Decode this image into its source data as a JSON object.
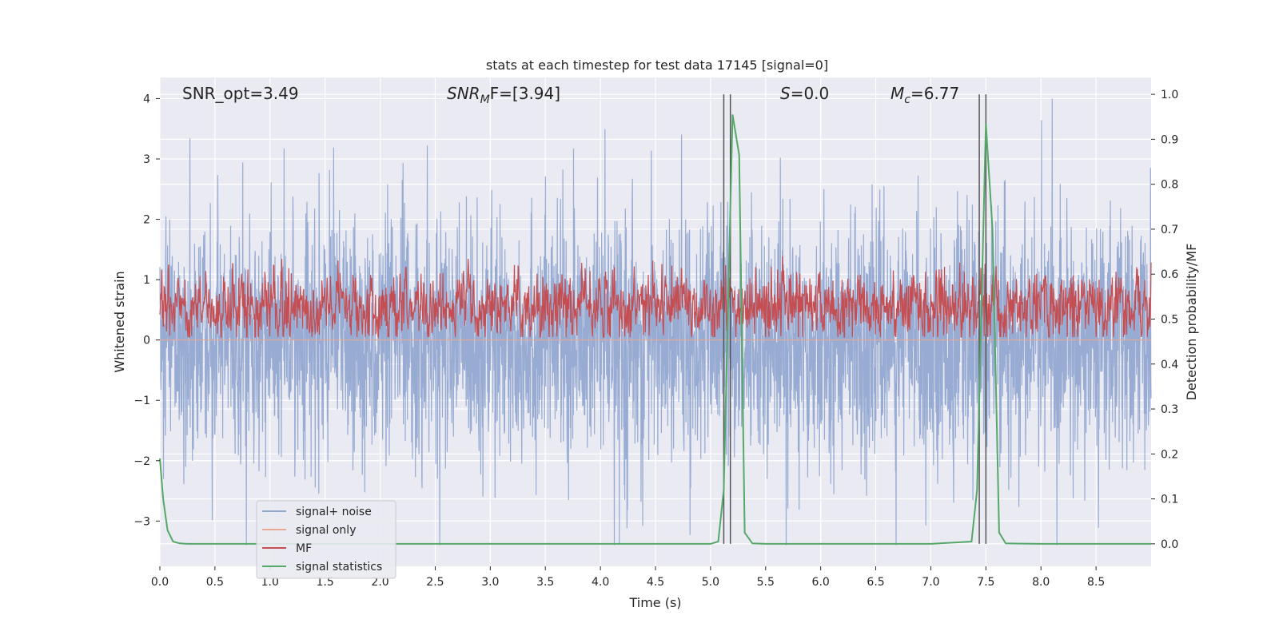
{
  "chart_data": {
    "type": "line",
    "title": "stats at each timestep for test data 17145 [signal=0]",
    "xlabel": "Time (s)",
    "ylabel_left": "Whitened strain",
    "ylabel_right": "Detection probability/MF",
    "xlim": [
      0.0,
      9.0
    ],
    "ylim_left": [
      -3.75,
      4.35
    ],
    "ylim_right": [
      -0.05,
      1.0375
    ],
    "x_ticks": [
      0.0,
      0.5,
      1.0,
      1.5,
      2.0,
      2.5,
      3.0,
      3.5,
      4.0,
      4.5,
      5.0,
      5.5,
      6.0,
      6.5,
      7.0,
      7.5,
      8.0,
      8.5
    ],
    "x_tick_labels": [
      "0.0",
      "0.5",
      "1.0",
      "1.5",
      "2.0",
      "2.5",
      "3.0",
      "3.5",
      "4.0",
      "4.5",
      "5.0",
      "5.5",
      "6.0",
      "6.5",
      "7.0",
      "7.5",
      "8.0",
      "8.5"
    ],
    "y_ticks_left": [
      4,
      3,
      2,
      1,
      0,
      -1,
      -2,
      -3
    ],
    "y_tick_labels_left": [
      "4",
      "3",
      "2",
      "1",
      "0",
      "−1",
      "−2",
      "−3"
    ],
    "y_ticks_right": [
      1.0,
      0.9,
      0.8,
      0.7,
      0.6,
      0.5,
      0.4,
      0.3,
      0.2,
      0.1,
      0.0
    ],
    "y_tick_labels_right": [
      "1.0",
      "0.9",
      "0.8",
      "0.7",
      "0.6",
      "0.5",
      "0.4",
      "0.3",
      "0.2",
      "0.1",
      "0.0"
    ],
    "grid": true,
    "legend_position": "lower-left",
    "annotations": {
      "snr_opt": "SNR_opt=3.49",
      "snr_mf_main": "SNR",
      "snr_mf_sub": "M",
      "snr_mf_rest": "F=[3.94]",
      "s_main": "S",
      "s_rest": "=0.0",
      "mc_main": "M",
      "mc_sub": "c",
      "mc_rest": "=6.77"
    },
    "series": [
      {
        "name": "signal+ noise",
        "color": "#92a8d1",
        "axis": "left",
        "description_range": [
          -3.4,
          4.0
        ],
        "envelope_typical": [
          -1.6,
          1.6
        ]
      },
      {
        "name": "signal only",
        "color": "#e8a894",
        "axis": "left",
        "values_constant": 0.0
      },
      {
        "name": "MF",
        "color": "#c44e52",
        "axis": "right",
        "center": 0.53,
        "typical_range": [
          0.46,
          0.64
        ]
      },
      {
        "name": "signal statistics",
        "color": "#55a868",
        "axis": "right",
        "x": [
          0.0,
          0.03,
          0.07,
          0.12,
          0.18,
          0.25,
          0.5,
          1.0,
          2.0,
          3.0,
          4.0,
          5.0,
          5.07,
          5.12,
          5.2,
          5.26,
          5.31,
          5.38,
          5.5,
          6.0,
          7.0,
          7.37,
          7.42,
          7.5,
          7.56,
          7.62,
          7.68,
          8.0,
          8.5,
          9.0
        ],
        "y": [
          0.19,
          0.1,
          0.03,
          0.005,
          0.001,
          0.0,
          0.0,
          0.0,
          0.0,
          0.0,
          0.0,
          0.0,
          0.005,
          0.12,
          0.955,
          0.865,
          0.025,
          0.001,
          0.0,
          0.0,
          0.0,
          0.005,
          0.12,
          0.935,
          0.7,
          0.025,
          0.001,
          0.0,
          0.0,
          0.0
        ]
      }
    ],
    "vertical_lines": [
      5.12,
      5.18,
      7.44,
      7.5
    ],
    "vertical_line_color": "#555555"
  }
}
